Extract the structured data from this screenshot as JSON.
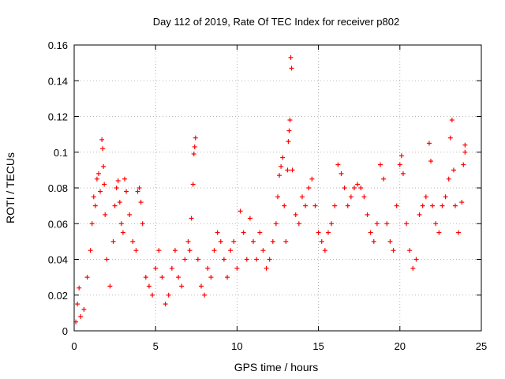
{
  "chart_data": {
    "type": "scatter",
    "title": "Day 112 of 2019, Rate Of TEC Index for receiver p802",
    "xlabel": "GPS time / hours",
    "ylabel": "ROTI / TECUs",
    "xlim": [
      0,
      25
    ],
    "ylim": [
      0,
      0.16
    ],
    "xticks": [
      0,
      5,
      10,
      15,
      20,
      25
    ],
    "yticks": [
      0,
      0.02,
      0.04,
      0.06,
      0.08,
      0.1,
      0.12,
      0.14,
      0.16
    ],
    "xtick_labels": [
      "0",
      "5",
      "10",
      "15",
      "20",
      "25"
    ],
    "ytick_labels": [
      "0",
      "0.02",
      "0.04",
      "0.06",
      "0.08",
      "0.1",
      "0.12",
      "0.14",
      "0.16"
    ],
    "grid": true,
    "marker": "+",
    "color": "#ff0000",
    "series": [
      {
        "name": "p802",
        "points": [
          [
            0.1,
            0.005
          ],
          [
            0.2,
            0.015
          ],
          [
            0.3,
            0.024
          ],
          [
            0.4,
            0.008
          ],
          [
            0.6,
            0.012
          ],
          [
            0.8,
            0.03
          ],
          [
            1.0,
            0.045
          ],
          [
            1.1,
            0.06
          ],
          [
            1.2,
            0.075
          ],
          [
            1.3,
            0.07
          ],
          [
            1.4,
            0.085
          ],
          [
            1.5,
            0.088
          ],
          [
            1.6,
            0.078
          ],
          [
            1.7,
            0.107
          ],
          [
            1.75,
            0.102
          ],
          [
            1.8,
            0.092
          ],
          [
            1.85,
            0.082
          ],
          [
            1.9,
            0.065
          ],
          [
            2.0,
            0.04
          ],
          [
            2.2,
            0.025
          ],
          [
            2.4,
            0.05
          ],
          [
            2.5,
            0.07
          ],
          [
            2.6,
            0.08
          ],
          [
            2.7,
            0.084
          ],
          [
            2.8,
            0.072
          ],
          [
            2.9,
            0.06
          ],
          [
            3.0,
            0.055
          ],
          [
            3.1,
            0.085
          ],
          [
            3.2,
            0.078
          ],
          [
            3.4,
            0.065
          ],
          [
            3.6,
            0.05
          ],
          [
            3.8,
            0.045
          ],
          [
            3.9,
            0.078
          ],
          [
            4.0,
            0.08
          ],
          [
            4.1,
            0.072
          ],
          [
            4.2,
            0.06
          ],
          [
            4.4,
            0.03
          ],
          [
            4.6,
            0.025
          ],
          [
            4.8,
            0.02
          ],
          [
            5.0,
            0.035
          ],
          [
            5.2,
            0.045
          ],
          [
            5.4,
            0.03
          ],
          [
            5.6,
            0.015
          ],
          [
            5.8,
            0.02
          ],
          [
            6.0,
            0.035
          ],
          [
            6.2,
            0.045
          ],
          [
            6.4,
            0.03
          ],
          [
            6.6,
            0.025
          ],
          [
            6.8,
            0.04
          ],
          [
            7.0,
            0.05
          ],
          [
            7.1,
            0.045
          ],
          [
            7.2,
            0.063
          ],
          [
            7.3,
            0.082
          ],
          [
            7.35,
            0.099
          ],
          [
            7.4,
            0.103
          ],
          [
            7.45,
            0.108
          ],
          [
            7.6,
            0.04
          ],
          [
            7.8,
            0.025
          ],
          [
            8.0,
            0.02
          ],
          [
            8.2,
            0.035
          ],
          [
            8.4,
            0.03
          ],
          [
            8.6,
            0.045
          ],
          [
            8.8,
            0.055
          ],
          [
            9.0,
            0.05
          ],
          [
            9.2,
            0.04
          ],
          [
            9.4,
            0.03
          ],
          [
            9.6,
            0.045
          ],
          [
            9.8,
            0.05
          ],
          [
            10.0,
            0.035
          ],
          [
            10.2,
            0.067
          ],
          [
            10.4,
            0.055
          ],
          [
            10.6,
            0.04
          ],
          [
            10.8,
            0.063
          ],
          [
            11.0,
            0.05
          ],
          [
            11.2,
            0.04
          ],
          [
            11.4,
            0.055
          ],
          [
            11.6,
            0.045
          ],
          [
            11.8,
            0.035
          ],
          [
            12.0,
            0.04
          ],
          [
            12.2,
            0.05
          ],
          [
            12.4,
            0.06
          ],
          [
            12.5,
            0.075
          ],
          [
            12.6,
            0.087
          ],
          [
            12.7,
            0.092
          ],
          [
            12.8,
            0.097
          ],
          [
            12.9,
            0.07
          ],
          [
            13.0,
            0.05
          ],
          [
            13.1,
            0.09
          ],
          [
            13.15,
            0.106
          ],
          [
            13.2,
            0.112
          ],
          [
            13.25,
            0.118
          ],
          [
            13.3,
            0.153
          ],
          [
            13.35,
            0.147
          ],
          [
            13.4,
            0.09
          ],
          [
            13.6,
            0.065
          ],
          [
            13.8,
            0.06
          ],
          [
            14.0,
            0.075
          ],
          [
            14.2,
            0.07
          ],
          [
            14.4,
            0.08
          ],
          [
            14.6,
            0.085
          ],
          [
            14.8,
            0.07
          ],
          [
            15.0,
            0.055
          ],
          [
            15.2,
            0.05
          ],
          [
            15.4,
            0.045
          ],
          [
            15.6,
            0.055
          ],
          [
            15.8,
            0.06
          ],
          [
            16.0,
            0.07
          ],
          [
            16.2,
            0.093
          ],
          [
            16.4,
            0.088
          ],
          [
            16.6,
            0.08
          ],
          [
            16.8,
            0.07
          ],
          [
            17.0,
            0.075
          ],
          [
            17.2,
            0.08
          ],
          [
            17.4,
            0.082
          ],
          [
            17.6,
            0.08
          ],
          [
            17.8,
            0.075
          ],
          [
            18.0,
            0.065
          ],
          [
            18.2,
            0.055
          ],
          [
            18.4,
            0.05
          ],
          [
            18.6,
            0.06
          ],
          [
            18.8,
            0.093
          ],
          [
            19.0,
            0.085
          ],
          [
            19.2,
            0.06
          ],
          [
            19.4,
            0.05
          ],
          [
            19.6,
            0.045
          ],
          [
            19.8,
            0.07
          ],
          [
            20.0,
            0.093
          ],
          [
            20.1,
            0.098
          ],
          [
            20.2,
            0.088
          ],
          [
            20.4,
            0.06
          ],
          [
            20.6,
            0.045
          ],
          [
            20.8,
            0.035
          ],
          [
            21.0,
            0.04
          ],
          [
            21.2,
            0.065
          ],
          [
            21.4,
            0.07
          ],
          [
            21.6,
            0.075
          ],
          [
            21.8,
            0.105
          ],
          [
            21.9,
            0.095
          ],
          [
            22.0,
            0.07
          ],
          [
            22.2,
            0.06
          ],
          [
            22.4,
            0.055
          ],
          [
            22.6,
            0.07
          ],
          [
            22.8,
            0.075
          ],
          [
            23.0,
            0.085
          ],
          [
            23.1,
            0.108
          ],
          [
            23.2,
            0.118
          ],
          [
            23.3,
            0.09
          ],
          [
            23.4,
            0.07
          ],
          [
            23.6,
            0.055
          ],
          [
            23.8,
            0.072
          ],
          [
            23.9,
            0.093
          ],
          [
            24.0,
            0.1
          ],
          [
            24.0,
            0.104
          ]
        ]
      }
    ]
  }
}
